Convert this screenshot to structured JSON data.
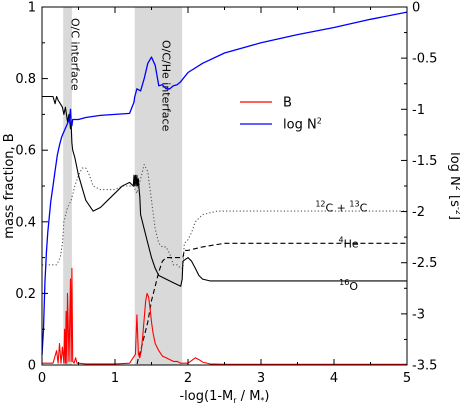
{
  "chart_data": {
    "type": "line",
    "xlabel_parts": [
      "-log(1-M",
      "r",
      " / M",
      "*",
      ")"
    ],
    "ylabel": "mass fraction, B",
    "y2label_parts": [
      "log N",
      "2",
      " [s",
      "-2",
      "]"
    ],
    "xlim": [
      0,
      5
    ],
    "ylim": [
      0,
      1
    ],
    "y2lim": [
      -3.5,
      0
    ],
    "x_ticks": [
      "0",
      "1",
      "2",
      "3",
      "4",
      "5"
    ],
    "y_ticks": [
      "0",
      "0.2",
      "0.4",
      "0.6",
      "0.8",
      "1"
    ],
    "y2_ticks": [
      "-3.5",
      "-3",
      "-2.5",
      "-2",
      "-1.5",
      "-1",
      "-0.5",
      "0"
    ],
    "shaded_regions": [
      {
        "label": "O/C interface",
        "x0": 0.29,
        "x1": 0.41
      },
      {
        "label": "O/C/He interface",
        "x0": 1.27,
        "x1": 1.92
      }
    ],
    "legend": {
      "placement": "upper-middle",
      "entries": [
        {
          "label": "B",
          "color": "#ff0000"
        },
        {
          "label_parts": [
            "log N",
            "2"
          ],
          "color": "#0000ff"
        }
      ]
    },
    "annotations": [
      {
        "parts": [
          "12",
          "C + ",
          "13",
          "C"
        ],
        "near_x": 4.1,
        "near_y": 0.44
      },
      {
        "parts": [
          "4",
          "He"
        ],
        "near_x": 4.2,
        "near_y": 0.34
      },
      {
        "parts": [
          "16",
          "O"
        ],
        "near_x": 4.2,
        "near_y": 0.22
      }
    ],
    "series": [
      {
        "name": "B",
        "axis": "left",
        "color": "#ff0000",
        "style": "solid",
        "x": [
          0.0,
          0.15,
          0.2,
          0.22,
          0.24,
          0.26,
          0.28,
          0.3,
          0.31,
          0.32,
          0.33,
          0.34,
          0.35,
          0.37,
          0.39,
          0.4,
          0.41,
          0.42,
          0.44,
          0.46,
          0.48,
          0.5,
          0.6,
          0.8,
          1.0,
          1.2,
          1.28,
          1.3,
          1.32,
          1.34,
          1.36,
          1.38,
          1.4,
          1.42,
          1.44,
          1.46,
          1.48,
          1.5,
          1.52,
          1.55,
          1.6,
          1.65,
          1.7,
          1.75,
          1.8,
          1.85,
          1.9,
          2.0,
          2.1,
          2.15,
          2.2,
          2.3,
          2.5,
          3.0,
          4.0,
          5.0
        ],
        "y": [
          0.005,
          0.005,
          0.04,
          0.005,
          0.06,
          0.005,
          0.05,
          0.005,
          0.1,
          0.005,
          0.15,
          0.005,
          0.2,
          0.01,
          0.24,
          0.01,
          0.27,
          0.01,
          0.005,
          0.02,
          0.005,
          0.005,
          0.003,
          0.003,
          0.003,
          0.005,
          0.03,
          0.14,
          0.03,
          0.02,
          0.04,
          0.08,
          0.13,
          0.18,
          0.2,
          0.19,
          0.16,
          0.12,
          0.09,
          0.06,
          0.04,
          0.025,
          0.02,
          0.015,
          0.01,
          0.01,
          0.005,
          0.005,
          0.02,
          0.015,
          0.008,
          0.003,
          0.002,
          0.002,
          0.002,
          0.002
        ]
      },
      {
        "name": "log N2",
        "axis": "right",
        "color": "#0000ff",
        "style": "solid",
        "x": [
          0.0,
          0.02,
          0.04,
          0.06,
          0.08,
          0.1,
          0.12,
          0.15,
          0.18,
          0.21,
          0.24,
          0.27,
          0.3,
          0.33,
          0.36,
          0.38,
          0.39,
          0.4,
          0.41,
          0.42,
          0.45,
          0.5,
          0.6,
          0.8,
          1.0,
          1.2,
          1.26,
          1.27,
          1.3,
          1.35,
          1.4,
          1.45,
          1.5,
          1.55,
          1.6,
          1.65,
          1.7,
          1.75,
          1.8,
          1.85,
          1.9,
          2.0,
          2.2,
          2.5,
          3.0,
          3.5,
          4.0,
          4.5,
          5.0
        ],
        "y": [
          -3.4,
          -3.15,
          -2.7,
          -2.4,
          -2.2,
          -2.05,
          -1.9,
          -1.75,
          -1.6,
          -1.45,
          -1.35,
          -1.27,
          -1.22,
          -1.17,
          -1.12,
          -1.08,
          -1.0,
          -1.15,
          -1.16,
          -1.1,
          -1.1,
          -1.1,
          -1.08,
          -1.06,
          -1.05,
          -1.04,
          -0.93,
          -0.88,
          -0.8,
          -0.82,
          -0.7,
          -0.55,
          -0.49,
          -0.57,
          -0.77,
          -0.76,
          -0.8,
          -0.8,
          -0.77,
          -0.76,
          -0.73,
          -0.64,
          -0.55,
          -0.45,
          -0.35,
          -0.27,
          -0.2,
          -0.12,
          -0.05
        ]
      },
      {
        "name": "12C + 13C",
        "axis": "left",
        "color": "#555555",
        "style": "dotted",
        "x": [
          0.0,
          0.2,
          0.25,
          0.28,
          0.3,
          0.35,
          0.4,
          0.45,
          0.5,
          0.55,
          0.6,
          0.65,
          0.7,
          0.8,
          0.9,
          1.0,
          1.1,
          1.2,
          1.25,
          1.3,
          1.35,
          1.4,
          1.45,
          1.5,
          1.55,
          1.6,
          1.65,
          1.7,
          1.75,
          1.8,
          1.85,
          1.9,
          1.93,
          1.95,
          2.0,
          2.05,
          2.1,
          2.2,
          2.4,
          2.7,
          3.0,
          4.0,
          5.0
        ],
        "y": [
          0.28,
          0.28,
          0.3,
          0.34,
          0.4,
          0.44,
          0.46,
          0.5,
          0.53,
          0.55,
          0.55,
          0.53,
          0.5,
          0.49,
          0.49,
          0.49,
          0.5,
          0.5,
          0.5,
          0.48,
          0.52,
          0.56,
          0.54,
          0.46,
          0.38,
          0.34,
          0.33,
          0.33,
          0.31,
          0.28,
          0.28,
          0.27,
          0.27,
          0.34,
          0.35,
          0.37,
          0.4,
          0.42,
          0.43,
          0.43,
          0.43,
          0.43,
          0.43
        ]
      },
      {
        "name": "4He",
        "axis": "left",
        "color": "#000000",
        "style": "dashed",
        "x": [
          0.0,
          0.5,
          1.0,
          1.28,
          1.3,
          1.32,
          1.35,
          1.4,
          1.45,
          1.5,
          1.55,
          1.6,
          1.65,
          1.7,
          1.8,
          1.9,
          1.93,
          1.95,
          2.0,
          2.2,
          2.5,
          3.0,
          4.0,
          5.0
        ],
        "y": [
          0.0,
          0.0,
          0.0,
          0.0,
          0.0,
          0.02,
          0.04,
          0.08,
          0.12,
          0.18,
          0.22,
          0.26,
          0.29,
          0.3,
          0.3,
          0.3,
          0.3,
          0.32,
          0.32,
          0.33,
          0.34,
          0.34,
          0.34,
          0.34
        ]
      },
      {
        "name": "16O",
        "axis": "left",
        "color": "#000000",
        "style": "solid",
        "x": [
          0.0,
          0.15,
          0.18,
          0.2,
          0.22,
          0.25,
          0.28,
          0.3,
          0.32,
          0.35,
          0.37,
          0.39,
          0.4,
          0.41,
          0.42,
          0.45,
          0.5,
          0.6,
          0.7,
          0.8,
          0.9,
          1.0,
          1.1,
          1.2,
          1.25,
          1.26,
          1.27,
          1.28,
          1.29,
          1.3,
          1.31,
          1.32,
          1.33,
          1.34,
          1.35,
          1.4,
          1.45,
          1.5,
          1.55,
          1.6,
          1.7,
          1.8,
          1.9,
          1.92,
          1.93,
          2.0,
          2.05,
          2.1,
          2.15,
          2.2,
          2.3,
          2.5,
          3.0,
          4.0,
          5.0
        ],
        "y": [
          0.75,
          0.75,
          0.73,
          0.75,
          0.74,
          0.73,
          0.72,
          0.7,
          0.72,
          0.68,
          0.7,
          0.66,
          0.67,
          0.62,
          0.6,
          0.58,
          0.53,
          0.46,
          0.43,
          0.44,
          0.46,
          0.48,
          0.5,
          0.51,
          0.5,
          0.53,
          0.5,
          0.53,
          0.5,
          0.53,
          0.5,
          0.52,
          0.49,
          0.47,
          0.42,
          0.38,
          0.34,
          0.3,
          0.27,
          0.25,
          0.24,
          0.23,
          0.22,
          0.24,
          0.29,
          0.3,
          0.29,
          0.27,
          0.25,
          0.24,
          0.235,
          0.235,
          0.235,
          0.235,
          0.235
        ]
      }
    ]
  }
}
